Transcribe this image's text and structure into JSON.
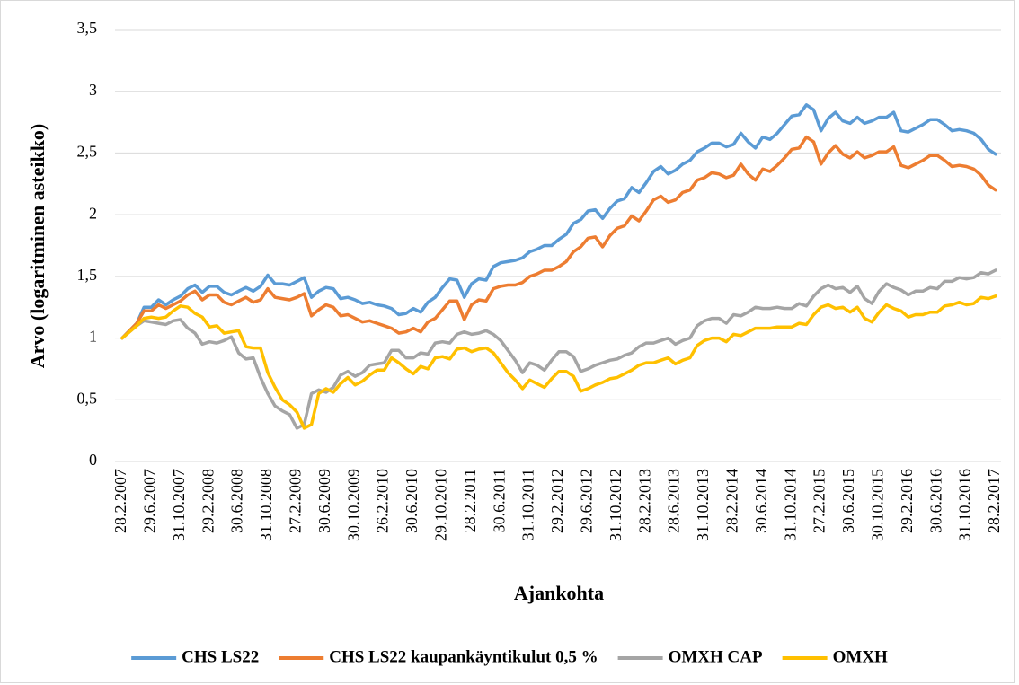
{
  "chart_data": {
    "type": "line",
    "ylabel": "Arvo (logaritminen asteikko)",
    "xlabel": "Ajankohta",
    "ylim": [
      0,
      3.5
    ],
    "yticks": [
      0,
      {
        "value": 0.5,
        "label": "0,5"
      },
      1,
      {
        "value": 1.5,
        "label": "1,5"
      },
      2,
      {
        "value": 2.5,
        "label": "2,5"
      },
      3,
      {
        "value": 3.5,
        "label": "3,5"
      }
    ],
    "grid": true,
    "legend": "bottom",
    "categories": [
      "28.2.2007",
      null,
      null,
      null,
      "29.6.2007",
      null,
      null,
      null,
      "31.10.2007",
      null,
      null,
      null,
      "29.2.2008",
      null,
      null,
      null,
      "30.6.2008",
      null,
      null,
      null,
      "31.10.2008",
      null,
      null,
      null,
      "27.2.2009",
      null,
      null,
      null,
      "30.6.2009",
      null,
      null,
      null,
      "30.10.2009",
      null,
      null,
      null,
      "26.2.2010",
      null,
      null,
      null,
      "30.6.2010",
      null,
      null,
      null,
      "29.10.2010",
      null,
      null,
      null,
      "28.2.2011",
      null,
      null,
      null,
      "30.6.2011",
      null,
      null,
      null,
      "31.10.2011",
      null,
      null,
      null,
      "29.2.2012",
      null,
      null,
      null,
      "29.6.2012",
      null,
      null,
      null,
      "31.10.2012",
      null,
      null,
      null,
      "28.2.2013",
      null,
      null,
      null,
      "28.6.2013",
      null,
      null,
      null,
      "31.10.2013",
      null,
      null,
      null,
      "28.2.2014",
      null,
      null,
      null,
      "30.6.2014",
      null,
      null,
      null,
      "31.10.2014",
      null,
      null,
      null,
      "27.2.2015",
      null,
      null,
      null,
      "30.6.2015",
      null,
      null,
      null,
      "30.10.2015",
      null,
      null,
      null,
      "29.2.2016",
      null,
      null,
      null,
      "30.6.2016",
      null,
      null,
      null,
      "31.10.2016",
      null,
      null,
      null,
      "28.2.2017"
    ],
    "series": [
      {
        "name": "CHS LS22",
        "color": "#5b9bd5",
        "values": [
          1.0,
          1.06,
          1.12,
          1.25,
          1.25,
          1.31,
          1.27,
          1.31,
          1.34,
          1.4,
          1.43,
          1.37,
          1.42,
          1.42,
          1.37,
          1.35,
          1.38,
          1.41,
          1.38,
          1.42,
          1.51,
          1.44,
          1.44,
          1.43,
          1.46,
          1.49,
          1.33,
          1.38,
          1.41,
          1.4,
          1.32,
          1.33,
          1.31,
          1.28,
          1.29,
          1.27,
          1.26,
          1.24,
          1.19,
          1.2,
          1.24,
          1.21,
          1.29,
          1.33,
          1.41,
          1.48,
          1.47,
          1.33,
          1.44,
          1.48,
          1.47,
          1.58,
          1.61,
          1.62,
          1.63,
          1.65,
          1.7,
          1.72,
          1.75,
          1.75,
          1.8,
          1.84,
          1.93,
          1.96,
          2.03,
          2.04,
          1.97,
          2.05,
          2.11,
          2.13,
          2.22,
          2.18,
          2.26,
          2.35,
          2.39,
          2.33,
          2.36,
          2.41,
          2.44,
          2.51,
          2.54,
          2.58,
          2.58,
          2.55,
          2.57,
          2.66,
          2.59,
          2.54,
          2.63,
          2.61,
          2.66,
          2.73,
          2.8,
          2.81,
          2.89,
          2.85,
          2.68,
          2.78,
          2.83,
          2.76,
          2.74,
          2.79,
          2.74,
          2.76,
          2.79,
          2.79,
          2.83,
          2.68,
          2.67,
          2.7,
          2.73,
          2.77,
          2.77,
          2.73,
          2.68,
          2.69,
          2.68,
          2.66,
          2.61,
          2.53,
          2.49
        ]
      },
      {
        "name": "CHS LS22 kaupankäyntikulut 0,5 %",
        "color": "#ed7d31",
        "values": [
          1.0,
          1.06,
          1.12,
          1.22,
          1.22,
          1.27,
          1.24,
          1.27,
          1.3,
          1.35,
          1.38,
          1.31,
          1.35,
          1.35,
          1.29,
          1.27,
          1.3,
          1.33,
          1.29,
          1.31,
          1.4,
          1.33,
          1.32,
          1.31,
          1.33,
          1.36,
          1.18,
          1.23,
          1.27,
          1.25,
          1.18,
          1.19,
          1.16,
          1.13,
          1.14,
          1.12,
          1.1,
          1.08,
          1.04,
          1.05,
          1.08,
          1.05,
          1.13,
          1.16,
          1.23,
          1.3,
          1.3,
          1.15,
          1.27,
          1.31,
          1.3,
          1.4,
          1.42,
          1.43,
          1.43,
          1.45,
          1.5,
          1.52,
          1.55,
          1.55,
          1.58,
          1.62,
          1.7,
          1.74,
          1.81,
          1.82,
          1.74,
          1.83,
          1.89,
          1.91,
          1.99,
          1.95,
          2.03,
          2.12,
          2.15,
          2.1,
          2.12,
          2.18,
          2.2,
          2.28,
          2.3,
          2.34,
          2.33,
          2.3,
          2.32,
          2.41,
          2.33,
          2.28,
          2.37,
          2.35,
          2.4,
          2.46,
          2.53,
          2.54,
          2.63,
          2.59,
          2.41,
          2.5,
          2.56,
          2.49,
          2.46,
          2.51,
          2.46,
          2.48,
          2.51,
          2.51,
          2.55,
          2.4,
          2.38,
          2.41,
          2.44,
          2.48,
          2.48,
          2.44,
          2.39,
          2.4,
          2.39,
          2.37,
          2.32,
          2.24,
          2.2
        ]
      },
      {
        "name": "OMXH CAP",
        "color": "#a5a5a5",
        "values": [
          1.0,
          1.05,
          1.1,
          1.14,
          1.13,
          1.12,
          1.11,
          1.14,
          1.15,
          1.08,
          1.04,
          0.95,
          0.97,
          0.96,
          0.98,
          1.01,
          0.88,
          0.83,
          0.84,
          0.68,
          0.55,
          0.45,
          0.41,
          0.38,
          0.27,
          0.3,
          0.55,
          0.58,
          0.56,
          0.6,
          0.7,
          0.73,
          0.69,
          0.72,
          0.78,
          0.79,
          0.8,
          0.9,
          0.9,
          0.84,
          0.84,
          0.88,
          0.87,
          0.96,
          0.97,
          0.96,
          1.03,
          1.05,
          1.03,
          1.04,
          1.06,
          1.03,
          0.98,
          0.9,
          0.82,
          0.72,
          0.8,
          0.78,
          0.74,
          0.82,
          0.89,
          0.89,
          0.85,
          0.73,
          0.75,
          0.78,
          0.8,
          0.82,
          0.83,
          0.86,
          0.88,
          0.93,
          0.96,
          0.96,
          0.98,
          1.0,
          0.95,
          0.98,
          1.0,
          1.1,
          1.14,
          1.16,
          1.16,
          1.12,
          1.19,
          1.18,
          1.21,
          1.25,
          1.24,
          1.24,
          1.25,
          1.24,
          1.24,
          1.28,
          1.26,
          1.34,
          1.4,
          1.43,
          1.4,
          1.41,
          1.37,
          1.42,
          1.32,
          1.28,
          1.38,
          1.44,
          1.41,
          1.39,
          1.35,
          1.38,
          1.38,
          1.41,
          1.4,
          1.46,
          1.46,
          1.49,
          1.48,
          1.49,
          1.53,
          1.52,
          1.55
        ]
      },
      {
        "name": "OMXH",
        "color": "#ffc000",
        "values": [
          1.0,
          1.05,
          1.1,
          1.16,
          1.17,
          1.16,
          1.17,
          1.22,
          1.26,
          1.25,
          1.2,
          1.17,
          1.09,
          1.1,
          1.04,
          1.05,
          1.06,
          0.93,
          0.92,
          0.92,
          0.72,
          0.6,
          0.5,
          0.46,
          0.4,
          0.27,
          0.3,
          0.55,
          0.59,
          0.56,
          0.63,
          0.68,
          0.62,
          0.65,
          0.7,
          0.74,
          0.74,
          0.84,
          0.8,
          0.75,
          0.71,
          0.77,
          0.75,
          0.84,
          0.85,
          0.83,
          0.91,
          0.92,
          0.89,
          0.91,
          0.92,
          0.88,
          0.8,
          0.72,
          0.66,
          0.59,
          0.66,
          0.63,
          0.6,
          0.67,
          0.73,
          0.73,
          0.69,
          0.57,
          0.59,
          0.62,
          0.64,
          0.67,
          0.68,
          0.71,
          0.74,
          0.78,
          0.8,
          0.8,
          0.82,
          0.84,
          0.79,
          0.82,
          0.84,
          0.94,
          0.98,
          1.0,
          1.0,
          0.97,
          1.03,
          1.02,
          1.05,
          1.08,
          1.08,
          1.08,
          1.09,
          1.09,
          1.09,
          1.12,
          1.11,
          1.19,
          1.25,
          1.27,
          1.24,
          1.25,
          1.21,
          1.25,
          1.16,
          1.13,
          1.21,
          1.27,
          1.24,
          1.22,
          1.17,
          1.19,
          1.19,
          1.21,
          1.21,
          1.26,
          1.27,
          1.29,
          1.27,
          1.28,
          1.33,
          1.32,
          1.34
        ]
      }
    ]
  }
}
